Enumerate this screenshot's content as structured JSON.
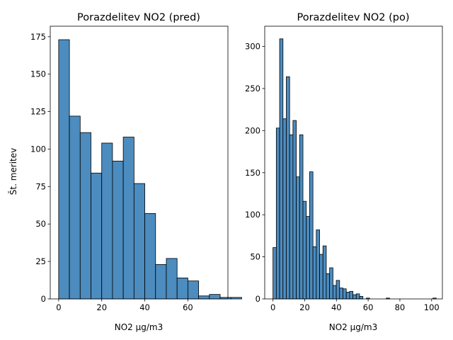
{
  "chart_data": [
    {
      "type": "bar",
      "title": "Porazdelitev NO2 (pred)",
      "xlabel": "NO2 µg/m3",
      "ylabel": "Št. meritev",
      "xlim": [
        -3.9,
        78.6
      ],
      "ylim": [
        0,
        182
      ],
      "xticks": [
        0,
        20,
        40,
        60
      ],
      "yticks": [
        0,
        25,
        50,
        75,
        100,
        125,
        150,
        175
      ],
      "bin_start": 0,
      "bin_width": 5,
      "values": [
        173,
        122,
        111,
        84,
        104,
        92,
        108,
        77,
        57,
        23,
        27,
        14,
        12,
        2,
        3,
        1,
        1,
        0
      ],
      "bar_color": "#4c8cbf",
      "grid": false
    },
    {
      "type": "bar",
      "title": "Porazdelitev NO2 (po)",
      "xlabel": "NO2 µg/m3",
      "ylabel": "",
      "xlim": [
        -5.2,
        106.8
      ],
      "ylim": [
        0,
        324
      ],
      "xticks": [
        0,
        20,
        40,
        60,
        80,
        100
      ],
      "yticks": [
        0,
        50,
        100,
        150,
        200,
        250,
        300
      ],
      "bin_start": 0,
      "bin_width": 2.1,
      "values": [
        61,
        203,
        309,
        214,
        264,
        195,
        212,
        145,
        195,
        116,
        98,
        151,
        62,
        82,
        53,
        63,
        30,
        37,
        16,
        22,
        13,
        12,
        8,
        9,
        5,
        6,
        3,
        0,
        1,
        0,
        0,
        0,
        0,
        0,
        1,
        0,
        0,
        0,
        0,
        0,
        0,
        0,
        0,
        0,
        0,
        0,
        0,
        0,
        1
      ],
      "bar_color": "#4c8cbf",
      "grid": false
    }
  ]
}
